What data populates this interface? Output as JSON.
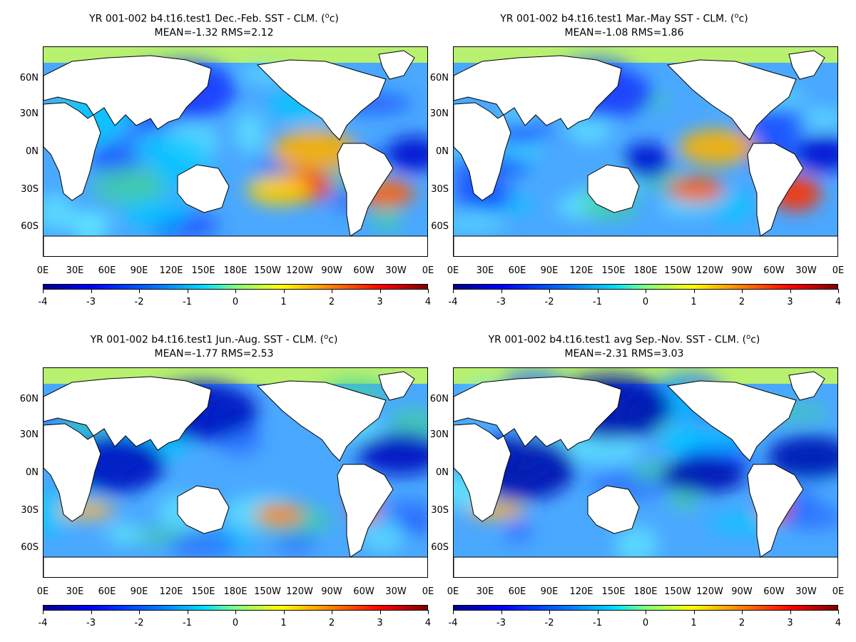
{
  "panels": [
    {
      "title": "YR 001-002 b4.t16.test1  Dec.-Feb. SST - CLM. (",
      "stats": "MEAN=-1.32   RMS=2.12"
    },
    {
      "title": "YR 001-002 b4.t16.test1 Mar.-May SST - CLM. (",
      "stats": "MEAN=-1.08   RMS=1.86"
    },
    {
      "title": "YR 001-002 b4.t16.test1 Jun.-Aug. SST - CLM. (",
      "stats": "MEAN=-1.77   RMS=2.53"
    },
    {
      "title": "YR 001-002 b4.t16.test1 avg Sep.-Nov. SST - CLM. (",
      "stats": "MEAN=-2.31   RMS=3.03"
    }
  ],
  "units": {
    "sup": "o",
    "base": "c",
    "close": ")"
  },
  "lat_labels": [
    "60N",
    "30N",
    "0N",
    "30S",
    "60S"
  ],
  "lon_labels": [
    "0E",
    "30E",
    "60E",
    "90E",
    "120E",
    "150E",
    "180E",
    "150W",
    "120W",
    "90W",
    "60W",
    "30W",
    "0E"
  ],
  "colorbar_labels": [
    "-4",
    "-3",
    "-2",
    "-1",
    "0",
    "1",
    "2",
    "3",
    "4"
  ],
  "colors": {
    "ocean_base": "#4aa8ff",
    "land": "#ffffff",
    "arctic": "#b8f070"
  }
}
